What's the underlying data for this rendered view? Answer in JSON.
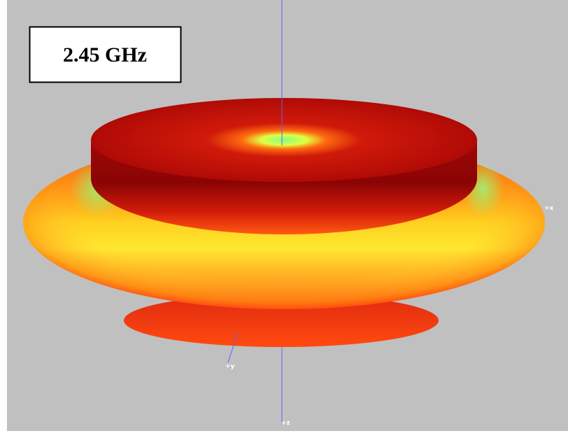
{
  "label": {
    "text": "2.45 GHz"
  },
  "axes": {
    "x": "+x",
    "y": "+y",
    "z": "+z"
  }
}
